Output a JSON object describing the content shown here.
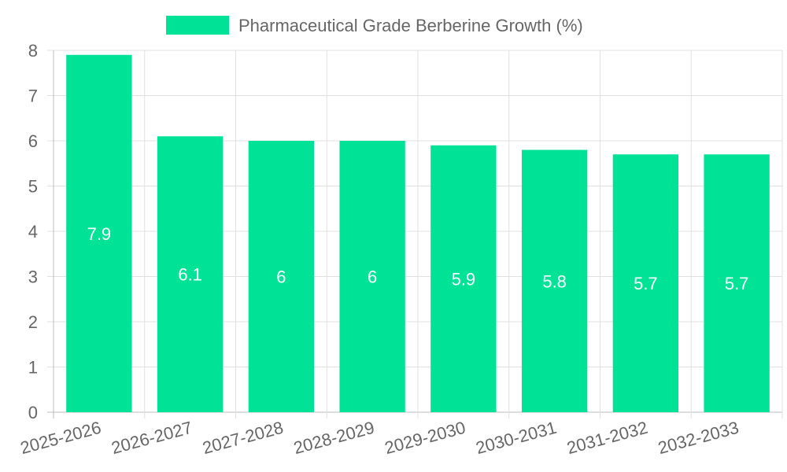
{
  "chart_data": {
    "type": "bar",
    "title": "",
    "xlabel": "",
    "ylabel": "",
    "categories": [
      "2025-2026",
      "2026-2027",
      "2027-2028",
      "2028-2029",
      "2029-2030",
      "2030-2031",
      "2031-2032",
      "2032-2033"
    ],
    "series": [
      {
        "name": "Pharmaceutical Grade Berberine Growth (%)",
        "values": [
          7.9,
          6.1,
          6,
          6,
          5.9,
          5.8,
          5.7,
          5.7
        ],
        "color": "#00e396"
      }
    ],
    "ylim": [
      0,
      8
    ],
    "yticks": [
      0,
      1,
      2,
      3,
      4,
      5,
      6,
      7,
      8
    ],
    "grid": true,
    "legend_position": "top-center",
    "data_labels": [
      "7.9",
      "6.1",
      "6",
      "6",
      "5.9",
      "5.8",
      "5.7",
      "5.7"
    ],
    "colors": {
      "grid": "#e0e0e0",
      "axis": "#bdbdbd",
      "label": "#666666",
      "data_label": "#ffffff"
    }
  }
}
